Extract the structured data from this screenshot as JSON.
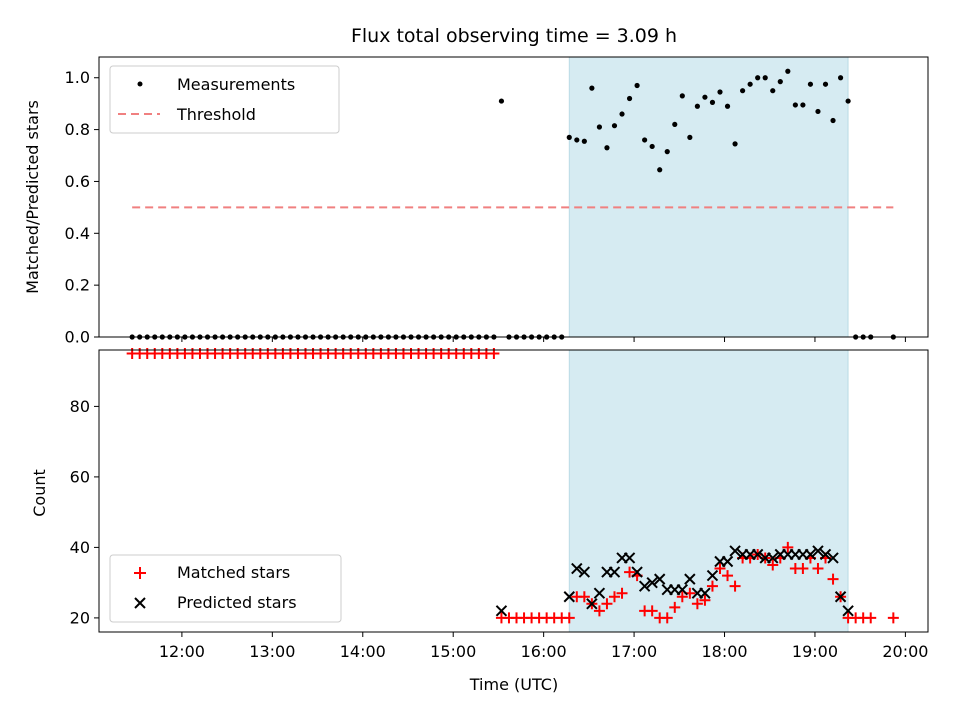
{
  "chart_data": [
    {
      "type": "scatter",
      "title": "Flux total observing time = 3.09 h",
      "ylabel": "Matched/Predicted stars",
      "xlabel": "",
      "ylim": [
        0,
        1.08
      ],
      "xlim": [
        "11:05",
        "20:15"
      ],
      "yticks": [
        "0.0",
        "0.2",
        "0.4",
        "0.6",
        "0.8",
        "1.0"
      ],
      "legend_position": "top-left",
      "shaded_interval": [
        "16:17",
        "19:22"
      ],
      "series": [
        {
          "name": "Measurements",
          "color": "#000000",
          "marker": "dot",
          "points": [
            [
              "11:27",
              0
            ],
            [
              "11:32",
              0
            ],
            [
              "11:37",
              0
            ],
            [
              "11:42",
              0
            ],
            [
              "11:47",
              0
            ],
            [
              "11:52",
              0
            ],
            [
              "11:57",
              0
            ],
            [
              "12:02",
              0
            ],
            [
              "12:07",
              0
            ],
            [
              "12:12",
              0
            ],
            [
              "12:17",
              0
            ],
            [
              "12:22",
              0
            ],
            [
              "12:27",
              0
            ],
            [
              "12:32",
              0
            ],
            [
              "12:37",
              0
            ],
            [
              "12:42",
              0
            ],
            [
              "12:47",
              0
            ],
            [
              "12:52",
              0
            ],
            [
              "12:57",
              0
            ],
            [
              "13:02",
              0
            ],
            [
              "13:07",
              0
            ],
            [
              "13:12",
              0
            ],
            [
              "13:17",
              0
            ],
            [
              "13:22",
              0
            ],
            [
              "13:27",
              0
            ],
            [
              "13:32",
              0
            ],
            [
              "13:37",
              0
            ],
            [
              "13:42",
              0
            ],
            [
              "13:47",
              0
            ],
            [
              "13:52",
              0
            ],
            [
              "13:57",
              0
            ],
            [
              "14:02",
              0
            ],
            [
              "14:07",
              0
            ],
            [
              "14:12",
              0
            ],
            [
              "14:17",
              0
            ],
            [
              "14:22",
              0
            ],
            [
              "14:27",
              0
            ],
            [
              "14:32",
              0
            ],
            [
              "14:37",
              0
            ],
            [
              "14:42",
              0
            ],
            [
              "14:47",
              0
            ],
            [
              "14:52",
              0
            ],
            [
              "14:57",
              0
            ],
            [
              "15:02",
              0
            ],
            [
              "15:07",
              0
            ],
            [
              "15:12",
              0
            ],
            [
              "15:17",
              0
            ],
            [
              "15:22",
              0
            ],
            [
              "15:27",
              0
            ],
            [
              "15:32",
              0.91
            ],
            [
              "15:37",
              0
            ],
            [
              "15:42",
              0
            ],
            [
              "15:47",
              0
            ],
            [
              "15:52",
              0
            ],
            [
              "15:57",
              0
            ],
            [
              "16:02",
              0
            ],
            [
              "16:07",
              0
            ],
            [
              "16:12",
              0
            ],
            [
              "16:17",
              0.77
            ],
            [
              "16:22",
              0.76
            ],
            [
              "16:27",
              0.755
            ],
            [
              "16:32",
              0.96
            ],
            [
              "16:37",
              0.81
            ],
            [
              "16:42",
              0.73
            ],
            [
              "16:47",
              0.815
            ],
            [
              "16:52",
              0.86
            ],
            [
              "16:57",
              0.92
            ],
            [
              "17:02",
              0.97
            ],
            [
              "17:07",
              0.76
            ],
            [
              "17:12",
              0.735
            ],
            [
              "17:17",
              0.645
            ],
            [
              "17:22",
              0.715
            ],
            [
              "17:27",
              0.82
            ],
            [
              "17:32",
              0.93
            ],
            [
              "17:37",
              0.77
            ],
            [
              "17:42",
              0.89
            ],
            [
              "17:47",
              0.925
            ],
            [
              "17:52",
              0.905
            ],
            [
              "17:57",
              0.945
            ],
            [
              "18:02",
              0.89
            ],
            [
              "18:07",
              0.745
            ],
            [
              "18:12",
              0.95
            ],
            [
              "18:17",
              0.975
            ],
            [
              "18:22",
              1.0
            ],
            [
              "18:27",
              1.0
            ],
            [
              "18:32",
              0.95
            ],
            [
              "18:37",
              0.985
            ],
            [
              "18:42",
              1.025
            ],
            [
              "18:47",
              0.895
            ],
            [
              "18:52",
              0.895
            ],
            [
              "18:57",
              0.975
            ],
            [
              "19:02",
              0.87
            ],
            [
              "19:07",
              0.975
            ],
            [
              "19:12",
              0.835
            ],
            [
              "19:17",
              1.0
            ],
            [
              "19:22",
              0.91
            ],
            [
              "19:27",
              0
            ],
            [
              "19:32",
              0
            ],
            [
              "19:37",
              0
            ],
            [
              "19:52",
              0
            ]
          ]
        },
        {
          "name": "Threshold",
          "color": "#f08080",
          "style": "dashed",
          "x": [
            "11:27",
            "19:52"
          ],
          "y": [
            0.5,
            0.5
          ]
        }
      ]
    },
    {
      "type": "scatter",
      "title": "",
      "ylabel": "Count",
      "xlabel": "Time (UTC)",
      "ylim": [
        16,
        96
      ],
      "xlim": [
        "11:05",
        "20:15"
      ],
      "yticks": [
        "20",
        "40",
        "60",
        "80"
      ],
      "xticks": [
        "12:00",
        "13:00",
        "14:00",
        "15:00",
        "16:00",
        "17:00",
        "18:00",
        "19:00",
        "20:00"
      ],
      "legend_position": "bottom-left",
      "shaded_interval": [
        "16:17",
        "19:22"
      ],
      "series": [
        {
          "name": "Matched stars",
          "color": "#ff0000",
          "marker": "plus",
          "points": [
            [
              "11:27",
              95
            ],
            [
              "11:32",
              95
            ],
            [
              "11:37",
              95
            ],
            [
              "11:42",
              95
            ],
            [
              "11:47",
              95
            ],
            [
              "11:52",
              95
            ],
            [
              "11:57",
              95
            ],
            [
              "12:02",
              95
            ],
            [
              "12:07",
              95
            ],
            [
              "12:12",
              95
            ],
            [
              "12:17",
              95
            ],
            [
              "12:22",
              95
            ],
            [
              "12:27",
              95
            ],
            [
              "12:32",
              95
            ],
            [
              "12:37",
              95
            ],
            [
              "12:42",
              95
            ],
            [
              "12:47",
              95
            ],
            [
              "12:52",
              95
            ],
            [
              "12:57",
              95
            ],
            [
              "13:02",
              95
            ],
            [
              "13:07",
              95
            ],
            [
              "13:12",
              95
            ],
            [
              "13:17",
              95
            ],
            [
              "13:22",
              95
            ],
            [
              "13:27",
              95
            ],
            [
              "13:32",
              95
            ],
            [
              "13:37",
              95
            ],
            [
              "13:42",
              95
            ],
            [
              "13:47",
              95
            ],
            [
              "13:52",
              95
            ],
            [
              "13:57",
              95
            ],
            [
              "14:02",
              95
            ],
            [
              "14:07",
              95
            ],
            [
              "14:12",
              95
            ],
            [
              "14:17",
              95
            ],
            [
              "14:22",
              95
            ],
            [
              "14:27",
              95
            ],
            [
              "14:32",
              95
            ],
            [
              "14:37",
              95
            ],
            [
              "14:42",
              95
            ],
            [
              "14:47",
              95
            ],
            [
              "14:52",
              95
            ],
            [
              "14:57",
              95
            ],
            [
              "15:02",
              95
            ],
            [
              "15:07",
              95
            ],
            [
              "15:12",
              95
            ],
            [
              "15:17",
              95
            ],
            [
              "15:22",
              95
            ],
            [
              "15:27",
              95
            ],
            [
              "15:32",
              20
            ],
            [
              "15:37",
              20
            ],
            [
              "15:42",
              20
            ],
            [
              "15:47",
              20
            ],
            [
              "15:52",
              20
            ],
            [
              "15:57",
              20
            ],
            [
              "16:02",
              20
            ],
            [
              "16:07",
              20
            ],
            [
              "16:12",
              20
            ],
            [
              "16:17",
              20
            ],
            [
              "16:22",
              26
            ],
            [
              "16:27",
              26
            ],
            [
              "16:32",
              24
            ],
            [
              "16:37",
              22
            ],
            [
              "16:42",
              24
            ],
            [
              "16:47",
              26
            ],
            [
              "16:52",
              27
            ],
            [
              "16:57",
              33
            ],
            [
              "17:02",
              32
            ],
            [
              "17:07",
              22
            ],
            [
              "17:12",
              22
            ],
            [
              "17:17",
              20
            ],
            [
              "17:22",
              20
            ],
            [
              "17:27",
              23
            ],
            [
              "17:32",
              26
            ],
            [
              "17:37",
              27
            ],
            [
              "17:42",
              24
            ],
            [
              "17:47",
              25
            ],
            [
              "17:52",
              29
            ],
            [
              "17:57",
              34
            ],
            [
              "18:02",
              32
            ],
            [
              "18:07",
              29
            ],
            [
              "18:12",
              37
            ],
            [
              "18:17",
              37
            ],
            [
              "18:22",
              38
            ],
            [
              "18:27",
              37
            ],
            [
              "18:32",
              35
            ],
            [
              "18:37",
              37
            ],
            [
              "18:42",
              40
            ],
            [
              "18:47",
              34
            ],
            [
              "18:52",
              34
            ],
            [
              "18:57",
              37
            ],
            [
              "19:02",
              34
            ],
            [
              "19:07",
              37
            ],
            [
              "19:12",
              31
            ],
            [
              "19:17",
              26
            ],
            [
              "19:22",
              20
            ],
            [
              "19:27",
              20
            ],
            [
              "19:32",
              20
            ],
            [
              "19:37",
              20
            ],
            [
              "19:52",
              20
            ]
          ]
        },
        {
          "name": "Predicted stars",
          "color": "#000000",
          "marker": "x",
          "points": [
            [
              "15:32",
              22
            ],
            [
              "16:17",
              26
            ],
            [
              "16:22",
              34
            ],
            [
              "16:27",
              33
            ],
            [
              "16:32",
              24
            ],
            [
              "16:37",
              27
            ],
            [
              "16:42",
              33
            ],
            [
              "16:47",
              33
            ],
            [
              "16:52",
              37
            ],
            [
              "16:57",
              37
            ],
            [
              "17:02",
              33
            ],
            [
              "17:07",
              29
            ],
            [
              "17:12",
              30
            ],
            [
              "17:17",
              31
            ],
            [
              "17:22",
              28
            ],
            [
              "17:27",
              28
            ],
            [
              "17:32",
              28
            ],
            [
              "17:37",
              31
            ],
            [
              "17:42",
              27
            ],
            [
              "17:47",
              27
            ],
            [
              "17:52",
              32
            ],
            [
              "17:57",
              36
            ],
            [
              "18:02",
              36
            ],
            [
              "18:07",
              39
            ],
            [
              "18:12",
              38
            ],
            [
              "18:17",
              38
            ],
            [
              "18:22",
              38
            ],
            [
              "18:27",
              37
            ],
            [
              "18:32",
              37
            ],
            [
              "18:37",
              38
            ],
            [
              "18:42",
              38
            ],
            [
              "18:47",
              38
            ],
            [
              "18:52",
              38
            ],
            [
              "18:57",
              38
            ],
            [
              "19:02",
              39
            ],
            [
              "19:07",
              38
            ],
            [
              "19:12",
              37
            ],
            [
              "19:17",
              26
            ],
            [
              "19:22",
              22
            ]
          ]
        }
      ]
    }
  ]
}
